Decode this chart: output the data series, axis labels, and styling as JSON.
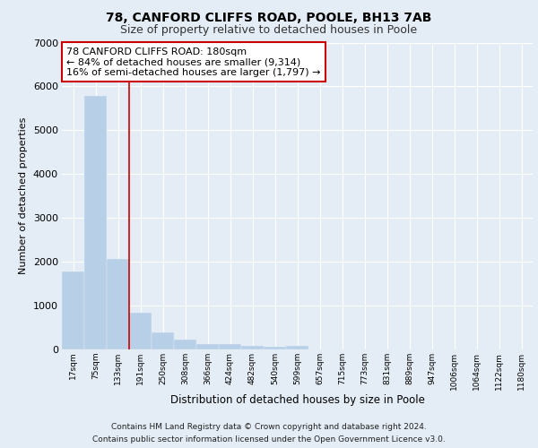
{
  "title1": "78, CANFORD CLIFFS ROAD, POOLE, BH13 7AB",
  "title2": "Size of property relative to detached houses in Poole",
  "xlabel": "Distribution of detached houses by size in Poole",
  "ylabel": "Number of detached properties",
  "bar_labels": [
    "17sqm",
    "75sqm",
    "133sqm",
    "191sqm",
    "250sqm",
    "308sqm",
    "366sqm",
    "424sqm",
    "482sqm",
    "540sqm",
    "599sqm",
    "657sqm",
    "715sqm",
    "773sqm",
    "831sqm",
    "889sqm",
    "947sqm",
    "1006sqm",
    "1064sqm",
    "1122sqm",
    "1180sqm"
  ],
  "bar_values": [
    1780,
    5780,
    2060,
    830,
    390,
    230,
    120,
    115,
    75,
    55,
    85,
    0,
    0,
    0,
    0,
    0,
    0,
    0,
    0,
    0,
    0
  ],
  "bar_color": "#b8cfe8",
  "vline_color": "#cc0000",
  "vline_index": 3,
  "annotation_title": "78 CANFORD CLIFFS ROAD: 180sqm",
  "annotation_line1": "← 84% of detached houses are smaller (9,314)",
  "annotation_line2": "16% of semi-detached houses are larger (1,797) →",
  "ylim": [
    0,
    7000
  ],
  "yticks": [
    0,
    1000,
    2000,
    3000,
    4000,
    5000,
    6000,
    7000
  ],
  "bg_color": "#e4ecf5",
  "plot_bg": "#e4ecf5",
  "grid_color": "#ffffff",
  "footer1": "Contains HM Land Registry data © Crown copyright and database right 2024.",
  "footer2": "Contains public sector information licensed under the Open Government Licence v3.0."
}
